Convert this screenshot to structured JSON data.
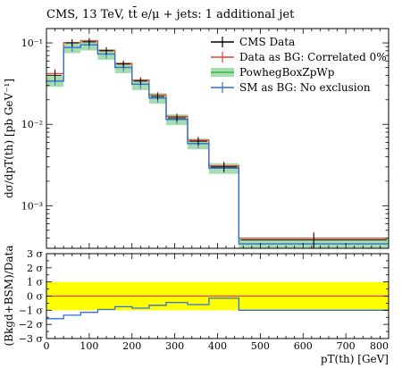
{
  "title": "CMS, 13 TeV, tt̄ e/μ + jets: 1 additional jet",
  "colors": {
    "cms_data": "#000000",
    "data_as_bg": "#e8402a",
    "powheg": "#3bb54a",
    "powheg_band": "#a7dcaf",
    "sm_as_bg": "#2f6fe0",
    "ratio_band": "#ffff00"
  },
  "chart_data": [
    {
      "type": "line",
      "name": "main-panel",
      "ylabel": "dσ/dpT(th) [pb GeV⁻¹]",
      "yscale": "log",
      "ylim": [
        0.0003,
        0.15
      ],
      "xlim": [
        0,
        800
      ],
      "y_tick_labels": [
        "10⁻¹",
        "10⁻²",
        "10⁻³"
      ],
      "legend": {
        "position": "top-right",
        "entries": [
          "CMS Data",
          "Data as BG: Correlated 0%",
          "PowhegBoxZpWp",
          "SM as BG: No exclusion"
        ]
      },
      "bin_edges": [
        0,
        40,
        80,
        120,
        160,
        200,
        240,
        280,
        330,
        380,
        450,
        800
      ],
      "series": [
        {
          "name": "CMS Data",
          "values": [
            0.04,
            0.1,
            0.103,
            0.08,
            0.055,
            0.034,
            0.022,
            0.012,
            0.0062,
            0.003,
            0.00038
          ],
          "errors": [
            0.006,
            0.01,
            0.01,
            0.008,
            0.005,
            0.003,
            0.002,
            0.0012,
            0.0007,
            0.0004,
            8e-05
          ]
        },
        {
          "name": "Data as BG: Correlated 0%",
          "values": [
            0.042,
            0.101,
            0.106,
            0.081,
            0.056,
            0.035,
            0.023,
            0.0125,
            0.0064,
            0.0031,
            0.0004
          ]
        },
        {
          "name": "PowhegBoxZpWp",
          "values": [
            0.034,
            0.088,
            0.095,
            0.073,
            0.05,
            0.031,
            0.021,
            0.0115,
            0.0058,
            0.0029,
            0.00034
          ],
          "band_rel": 0.15
        },
        {
          "name": "SM as BG: No exclusion",
          "values": [
            0.034,
            0.088,
            0.095,
            0.073,
            0.05,
            0.031,
            0.021,
            0.0115,
            0.0058,
            0.0029,
            0.00034
          ]
        }
      ]
    },
    {
      "type": "line",
      "name": "ratio-panel",
      "ylabel": "(Bkgd+BSM)/Data",
      "xlabel": "pT(th) [GeV]",
      "xlim": [
        0,
        800
      ],
      "ylim": [
        -3,
        3
      ],
      "x_ticks": [
        0,
        100,
        200,
        300,
        400,
        500,
        600,
        700,
        800
      ],
      "x_tick_labels": [
        "0",
        "100",
        "200",
        "300",
        "400",
        "500",
        "600",
        "700",
        "800"
      ],
      "y_ticks": [
        3,
        2,
        1,
        0,
        -1,
        -2,
        -3
      ],
      "y_tick_labels": [
        "3 σ",
        "2 σ",
        "1 σ",
        "0 σ",
        "−1 σ",
        "−2 σ",
        "−3 σ"
      ],
      "band": [
        -1,
        1
      ],
      "bin_edges": [
        0,
        40,
        80,
        120,
        160,
        200,
        240,
        280,
        330,
        380,
        450,
        800
      ],
      "series": [
        {
          "name": "Data as BG: Correlated 0%",
          "values": [
            0,
            0,
            0,
            0,
            0,
            0,
            0,
            0,
            0,
            0,
            0
          ]
        },
        {
          "name": "SM as BG: No exclusion",
          "values": [
            -1.6,
            -1.35,
            -1.15,
            -0.95,
            -0.75,
            -0.85,
            -0.65,
            -0.45,
            -0.6,
            -0.15,
            -1.0
          ]
        }
      ]
    }
  ]
}
